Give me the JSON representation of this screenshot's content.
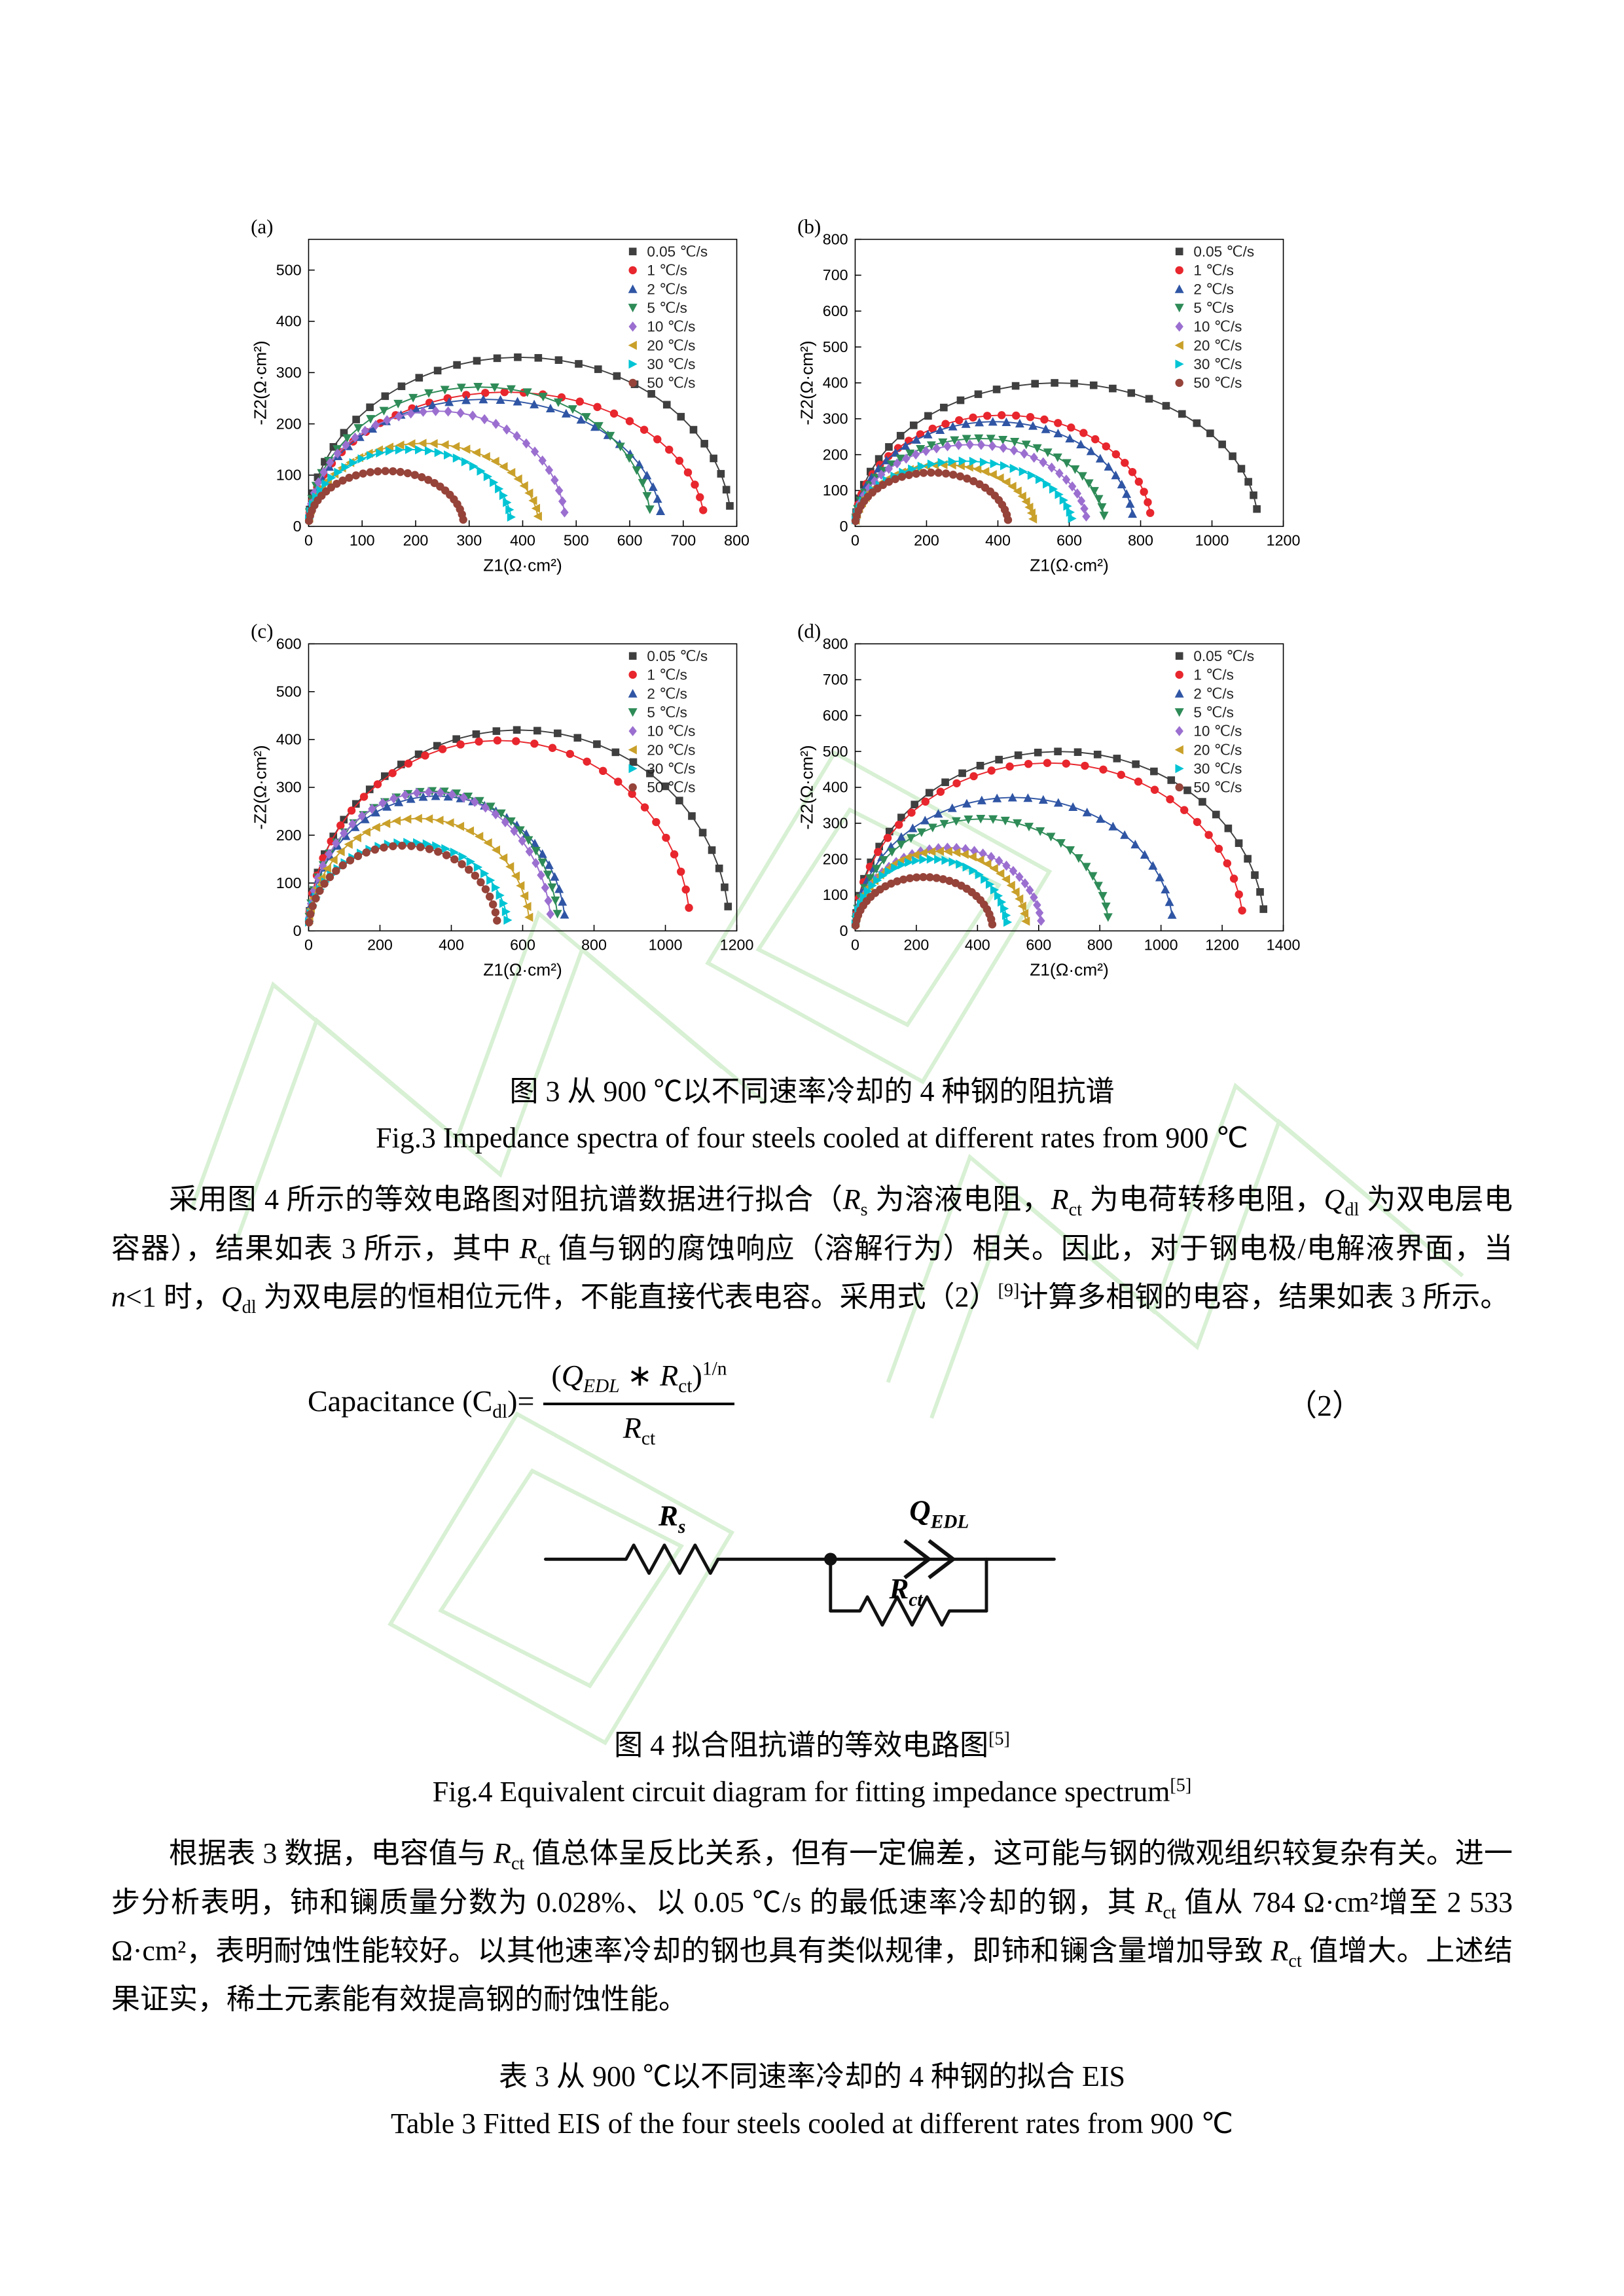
{
  "figure3": {
    "caption_cn": "图 3  从 900 ℃以不同速率冷却的 4 种钢的阻抗谱",
    "caption_en": "Fig.3 Impedance spectra of four steels cooled at different rates from 900  ℃"
  },
  "paragraph1_html": "采用图 4 所示的等效电路图对阻抗谱数据进行拟合（<i>R</i><sub>s</sub> 为溶液电阻，<i>R</i><sub>ct</sub> 为电荷转移电阻，<i>Q</i><sub>dl</sub> 为双电层电容器），结果如表 3 所示，其中 <i>R</i><sub>ct</sub> 值与钢的腐蚀响应（溶解行为）相关。因此，对于钢电极/电解液界面，当 <i>n</i>&lt;1 时，<i>Q</i><sub>dl</sub> 为双电层的恒相位元件，不能直接代表电容。采用式（2）<sup>[9]</sup>计算多相钢的电容，结果如表 3 所示。",
  "equation": {
    "lhs_html": "Capacitance (C<sub>dl</sub>)=",
    "num_html": "(<i>Q<sub>EDL</sub></i> ∗ <i>R</i><sub>ct</sub>)<sup>1/n</sup>",
    "den_html": "<i>R</i><sub>ct</sub>",
    "number": "（2）"
  },
  "figure4": {
    "caption_cn_html": "图 4  拟合阻抗谱的等效电路图<sup>[5]</sup>",
    "caption_en_html": "Fig.4 Equivalent circuit diagram for fitting impedance spectrum<sup>[5]</sup>"
  },
  "paragraph2_html": "根据表 3 数据，电容值与 <i>R</i><sub>ct</sub> 值总体呈反比关系，但有一定偏差，这可能与钢的微观组织较复杂有关。进一步分析表明，铈和镧质量分数为 0.028%、以 0.05  ℃/s 的最低速率冷却的钢，其 <i>R</i><sub>ct</sub> 值从 784 Ω·cm²增至 2 533 Ω·cm²，表明耐蚀性能较好。以其他速率冷却的钢也具有类似规律，即铈和镧含量增加导致 <i>R</i><sub>ct</sub> 值增大。上述结果证实，稀土元素能有效提高钢的耐蚀性能。",
  "table3": {
    "caption_cn": "表 3  从 900 ℃以不同速率冷却的 4 种钢的拟合 EIS",
    "caption_en": "Table 3 Fitted EIS of the four steels cooled at different rates from 900  ℃"
  },
  "circuit": {
    "rs": {
      "base": "R",
      "sub": "s"
    },
    "qedl": {
      "base": "Q",
      "sub": "EDL"
    },
    "rct": {
      "base": "R",
      "sub": "ct"
    }
  },
  "chart_data": [
    {
      "type": "scatter",
      "panel": "(a)",
      "model": "depressed-semicircle (zmax = real-axis intercept, peak = max -Z2)",
      "xlabel": "Z1(Ω·cm²)",
      "ylabel": "-Z2(Ω·cm²)",
      "xlim": [
        0,
        800
      ],
      "xtick_step": 100,
      "ylim": [
        0,
        560
      ],
      "ytick_step": 100,
      "grid": false,
      "legend_position": "top-right",
      "series": [
        {
          "name": "0.05 ℃/s",
          "color": "#3f3f3f",
          "marker": "square",
          "zmax": 790,
          "peak": 330
        },
        {
          "name": "1 ℃/s",
          "color": "#e8262d",
          "marker": "circle",
          "zmax": 740,
          "peak": 262
        },
        {
          "name": "2 ℃/s",
          "color": "#2f55a4",
          "marker": "triangle-up",
          "zmax": 660,
          "peak": 248
        },
        {
          "name": "5 ℃/s",
          "color": "#2e8b57",
          "marker": "triangle-down",
          "zmax": 640,
          "peak": 272
        },
        {
          "name": "10 ℃/s",
          "color": "#9b6fd0",
          "marker": "diamond",
          "zmax": 480,
          "peak": 225
        },
        {
          "name": "20 ℃/s",
          "color": "#c9a02a",
          "marker": "triangle-left",
          "zmax": 430,
          "peak": 162
        },
        {
          "name": "30 ℃/s",
          "color": "#00c4d4",
          "marker": "triangle-right",
          "zmax": 380,
          "peak": 150
        },
        {
          "name": "50 ℃/s",
          "color": "#96433a",
          "marker": "circle",
          "zmax": 290,
          "peak": 108
        }
      ]
    },
    {
      "type": "scatter",
      "panel": "(b)",
      "model": "depressed-semicircle",
      "xlabel": "Z1(Ω·cm²)",
      "ylabel": "-Z2(Ω·cm²)",
      "xlim": [
        0,
        1200
      ],
      "xtick_step": 200,
      "ylim": [
        0,
        800
      ],
      "ytick_step": 100,
      "grid": false,
      "legend_position": "top-right",
      "series": [
        {
          "name": "0.05 ℃/s",
          "color": "#3f3f3f",
          "marker": "square",
          "zmax": 1130,
          "peak": 400
        },
        {
          "name": "1 ℃/s",
          "color": "#e8262d",
          "marker": "circle",
          "zmax": 830,
          "peak": 310
        },
        {
          "name": "2 ℃/s",
          "color": "#2f55a4",
          "marker": "triangle-up",
          "zmax": 780,
          "peak": 292
        },
        {
          "name": "5 ℃/s",
          "color": "#2e8b57",
          "marker": "triangle-down",
          "zmax": 700,
          "peak": 245
        },
        {
          "name": "10 ℃/s",
          "color": "#9b6fd0",
          "marker": "diamond",
          "zmax": 650,
          "peak": 228
        },
        {
          "name": "20 ℃/s",
          "color": "#c9a02a",
          "marker": "triangle-left",
          "zmax": 500,
          "peak": 172
        },
        {
          "name": "30 ℃/s",
          "color": "#00c4d4",
          "marker": "triangle-right",
          "zmax": 610,
          "peak": 182
        },
        {
          "name": "50 ℃/s",
          "color": "#96433a",
          "marker": "circle",
          "zmax": 430,
          "peak": 150
        }
      ]
    },
    {
      "type": "scatter",
      "panel": "(c)",
      "model": "depressed-semicircle",
      "xlabel": "Z1(Ω·cm²)",
      "ylabel": "-Z2(Ω·cm²)",
      "xlim": [
        0,
        1200
      ],
      "xtick_step": 200,
      "ylim": [
        0,
        600
      ],
      "ytick_step": 100,
      "grid": false,
      "legend_position": "top-right",
      "series": [
        {
          "name": "0.05 ℃/s",
          "color": "#3f3f3f",
          "marker": "square",
          "zmax": 1180,
          "peak": 420
        },
        {
          "name": "1 ℃/s",
          "color": "#e8262d",
          "marker": "circle",
          "zmax": 1070,
          "peak": 398
        },
        {
          "name": "2 ℃/s",
          "color": "#2f55a4",
          "marker": "triangle-up",
          "zmax": 720,
          "peak": 282
        },
        {
          "name": "5 ℃/s",
          "color": "#2e8b57",
          "marker": "triangle-down",
          "zmax": 700,
          "peak": 292
        },
        {
          "name": "10 ℃/s",
          "color": "#9b6fd0",
          "marker": "diamond",
          "zmax": 680,
          "peak": 290
        },
        {
          "name": "20 ℃/s",
          "color": "#c9a02a",
          "marker": "triangle-left",
          "zmax": 620,
          "peak": 235
        },
        {
          "name": "30 ℃/s",
          "color": "#00c4d4",
          "marker": "triangle-right",
          "zmax": 560,
          "peak": 185
        },
        {
          "name": "50 ℃/s",
          "color": "#96433a",
          "marker": "circle",
          "zmax": 530,
          "peak": 178
        }
      ]
    },
    {
      "type": "scatter",
      "panel": "(d)",
      "model": "depressed-semicircle",
      "xlabel": "Z1(Ω·cm²)",
      "ylabel": "-Z2(Ω·cm²)",
      "xlim": [
        0,
        1400
      ],
      "xtick_step": 200,
      "ylim": [
        0,
        800
      ],
      "ytick_step": 100,
      "grid": false,
      "legend_position": "top-right",
      "series": [
        {
          "name": "0.05 ℃/s",
          "color": "#3f3f3f",
          "marker": "square",
          "zmax": 1340,
          "peak": 500
        },
        {
          "name": "1 ℃/s",
          "color": "#e8262d",
          "marker": "circle",
          "zmax": 1270,
          "peak": 468
        },
        {
          "name": "2 ℃/s",
          "color": "#2f55a4",
          "marker": "triangle-up",
          "zmax": 1040,
          "peak": 372
        },
        {
          "name": "5 ℃/s",
          "color": "#2e8b57",
          "marker": "triangle-down",
          "zmax": 830,
          "peak": 312
        },
        {
          "name": "10 ℃/s",
          "color": "#9b6fd0",
          "marker": "diamond",
          "zmax": 610,
          "peak": 232
        },
        {
          "name": "20 ℃/s",
          "color": "#c9a02a",
          "marker": "triangle-left",
          "zmax": 560,
          "peak": 222
        },
        {
          "name": "30 ℃/s",
          "color": "#00c4d4",
          "marker": "triangle-right",
          "zmax": 500,
          "peak": 200
        },
        {
          "name": "50 ℃/s",
          "color": "#96433a",
          "marker": "circle",
          "zmax": 450,
          "peak": 150
        }
      ]
    }
  ]
}
